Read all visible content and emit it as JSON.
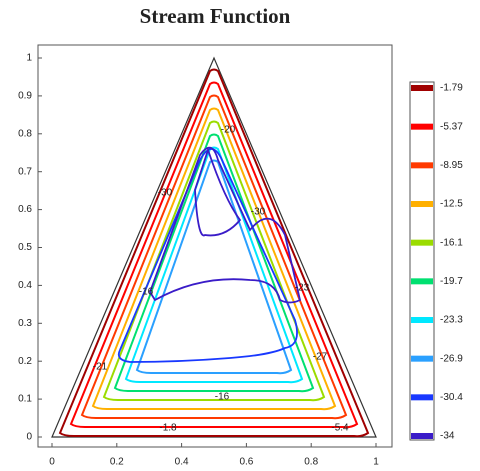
{
  "chart_data": {
    "type": "contour",
    "title": "Stream Function",
    "xlim": [
      0,
      1
    ],
    "ylim": [
      0,
      1
    ],
    "xticks": [
      0,
      0.2,
      0.4,
      0.6,
      0.8,
      1
    ],
    "yticks": [
      0,
      0.1,
      0.2,
      0.3,
      0.4,
      0.5,
      0.6,
      0.7,
      0.8,
      0.9,
      1
    ],
    "colorbar": {
      "ticks": [
        -1.79,
        -5.37,
        -8.95,
        -12.5,
        -16.1,
        -19.7,
        -23.3,
        -26.9,
        -30.4,
        -34
      ],
      "colors": [
        "#a00000",
        "#ff0000",
        "#ff3a00",
        "#ffb000",
        "#9bdc00",
        "#00e070",
        "#00e8ff",
        "#2aa0ff",
        "#1838ff",
        "#3a1cc8"
      ]
    },
    "annotations": [
      "-20",
      "-30",
      "-30",
      "-16",
      "-23",
      "-27",
      "-21",
      "-16",
      "-1.8",
      "-5.4"
    ]
  }
}
